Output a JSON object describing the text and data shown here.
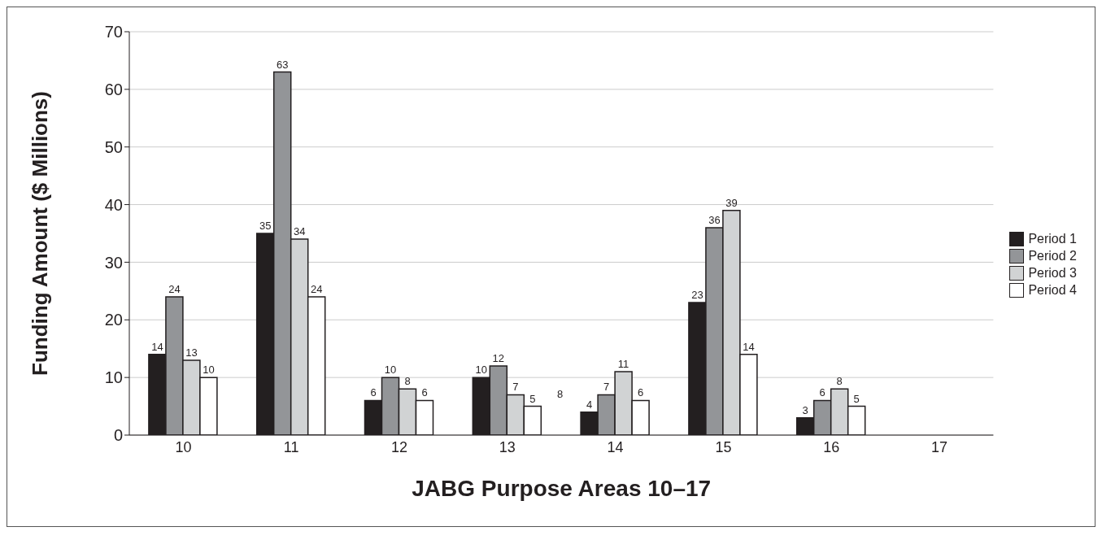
{
  "chart_data": {
    "type": "bar",
    "xlabel": "JABG Purpose Areas 10–17",
    "ylabel": "Funding Amount ($ Millions)",
    "categories": [
      "10",
      "11",
      "12",
      "13",
      "14",
      "15",
      "16",
      "17"
    ],
    "series": [
      {
        "name": "Period 1",
        "color": "#231f20",
        "values": [
          14,
          35,
          6,
          10,
          4,
          23,
          3,
          null
        ]
      },
      {
        "name": "Period 2",
        "color": "#939598",
        "values": [
          24,
          63,
          10,
          12,
          7,
          36,
          6,
          null
        ]
      },
      {
        "name": "Period 3",
        "color": "#d1d3d4",
        "values": [
          13,
          34,
          8,
          7,
          11,
          39,
          8,
          null
        ]
      },
      {
        "name": "Period 4",
        "color": "#ffffff",
        "values": [
          10,
          24,
          6,
          5,
          6,
          14,
          5,
          null
        ]
      }
    ],
    "ylim": [
      0,
      70
    ],
    "yticks": [
      0,
      10,
      20,
      30,
      40,
      50,
      60,
      70
    ],
    "grid": "y",
    "legend": "right",
    "data_labels": true,
    "annotations": [
      "8"
    ]
  }
}
